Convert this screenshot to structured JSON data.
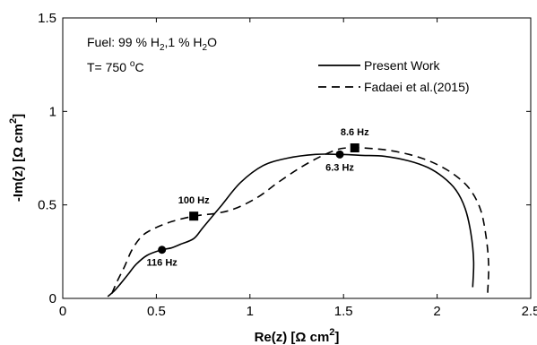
{
  "chart_data": {
    "type": "line",
    "xlabel": "Re(z) [Ω cm",
    "xlabel_sup": "2",
    "xlabel_close": "]",
    "ylabel": "-Im(z) [Ω cm",
    "ylabel_sup": "2",
    "ylabel_close": "]",
    "xlim": [
      0,
      2.5
    ],
    "ylim": [
      0,
      1.5
    ],
    "xticks": [
      0,
      0.5,
      1,
      1.5,
      2,
      2.5
    ],
    "yticks": [
      0,
      0.5,
      1,
      1.5
    ],
    "xtick_labels": [
      "0",
      "0.5",
      "1",
      "1.5",
      "2",
      "2.5"
    ],
    "ytick_labels": [
      "0",
      "0.5",
      "1",
      "1.5"
    ],
    "grid": false,
    "legend_position": "top-right",
    "annotation_fuel": {
      "prefix": "Fuel: 99 % H",
      "sub1": "2",
      "mid": ",1 % H",
      "sub2": "2",
      "suffix": "O"
    },
    "annotation_temp": {
      "prefix": "T= 750 ",
      "sup": "o",
      "suffix": "C"
    },
    "series": [
      {
        "name": "Present Work",
        "style": "solid",
        "x": [
          2.19,
          2.195,
          2.18,
          2.15,
          2.1,
          2.03,
          1.95,
          1.85,
          1.72,
          1.6,
          1.48,
          1.35,
          1.2,
          1.07,
          0.95,
          0.85,
          0.75,
          0.7,
          0.63,
          0.58,
          0.53,
          0.45,
          0.39,
          0.35,
          0.31,
          0.275,
          0.24
        ],
        "y": [
          0.06,
          0.2,
          0.35,
          0.48,
          0.58,
          0.65,
          0.7,
          0.735,
          0.76,
          0.765,
          0.77,
          0.77,
          0.75,
          0.71,
          0.62,
          0.5,
          0.38,
          0.32,
          0.29,
          0.27,
          0.26,
          0.23,
          0.18,
          0.13,
          0.08,
          0.04,
          0.01
        ]
      },
      {
        "name": "Fadaei et al.(2015)",
        "style": "dashed",
        "x": [
          2.27,
          2.275,
          2.26,
          2.23,
          2.17,
          2.08,
          1.97,
          1.85,
          1.72,
          1.6,
          1.56,
          1.48,
          1.38,
          1.27,
          1.15,
          1.04,
          0.92,
          0.82,
          0.7,
          0.58,
          0.48,
          0.42,
          0.37,
          0.33,
          0.29,
          0.26
        ],
        "y": [
          0.03,
          0.18,
          0.34,
          0.48,
          0.59,
          0.67,
          0.73,
          0.77,
          0.795,
          0.805,
          0.805,
          0.8,
          0.76,
          0.7,
          0.62,
          0.54,
          0.48,
          0.455,
          0.44,
          0.41,
          0.37,
          0.33,
          0.26,
          0.17,
          0.09,
          0.02
        ]
      }
    ],
    "markers": [
      {
        "x": 0.53,
        "y": 0.26,
        "shape": "circle",
        "label": "116 Hz",
        "label_pos": "below"
      },
      {
        "x": 1.48,
        "y": 0.77,
        "shape": "circle",
        "label": "6.3 Hz",
        "label_pos": "below"
      },
      {
        "x": 0.7,
        "y": 0.44,
        "shape": "square",
        "label": "100 Hz",
        "label_pos": "above"
      },
      {
        "x": 1.56,
        "y": 0.805,
        "shape": "square",
        "label": "8.6 Hz",
        "label_pos": "above"
      }
    ]
  }
}
